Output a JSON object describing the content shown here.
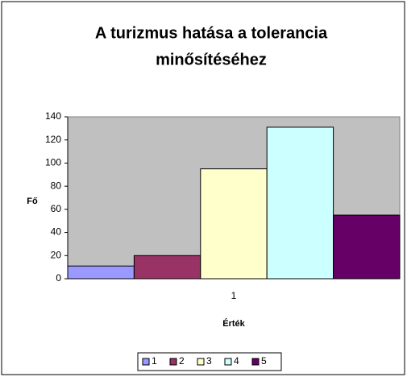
{
  "chart_data": {
    "type": "bar",
    "title_lines": [
      "A turizmus hatása a tolerancia",
      "minősítéséhez"
    ],
    "x_label": "Érték",
    "y_label": "Fő",
    "categories": [
      "1"
    ],
    "series": [
      {
        "name": "1",
        "color": "#9999ff",
        "values": [
          11
        ]
      },
      {
        "name": "2",
        "color": "#993366",
        "values": [
          20
        ]
      },
      {
        "name": "3",
        "color": "#ffffcc",
        "values": [
          95
        ]
      },
      {
        "name": "4",
        "color": "#ccffff",
        "values": [
          131
        ]
      },
      {
        "name": "5",
        "color": "#660066",
        "values": [
          55
        ]
      }
    ],
    "ylim": [
      0,
      140
    ],
    "yticks": [
      0,
      20,
      40,
      60,
      80,
      100,
      120,
      140
    ],
    "plot_color": "#c0c0c0",
    "legend": "bottom"
  }
}
